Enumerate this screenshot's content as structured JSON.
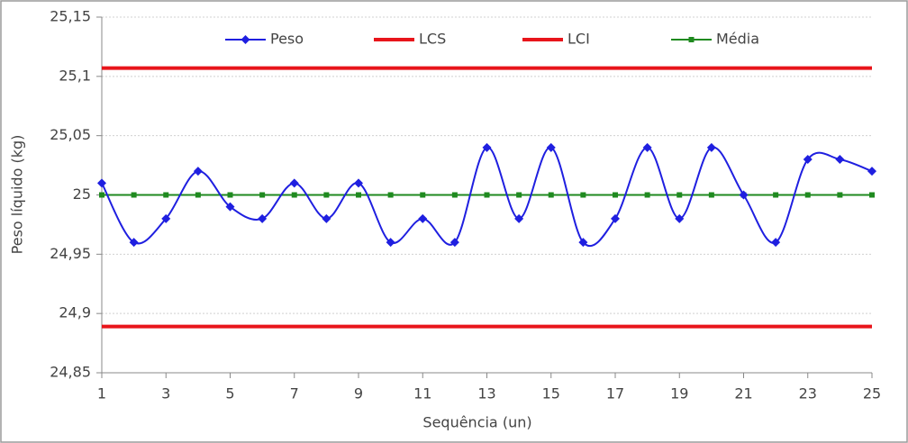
{
  "chart_data": {
    "type": "line",
    "x_label": "Sequência (un)",
    "y_label": "Peso líquido (kg)",
    "x": [
      1,
      2,
      3,
      4,
      5,
      6,
      7,
      8,
      9,
      10,
      11,
      12,
      13,
      14,
      15,
      16,
      17,
      18,
      19,
      20,
      21,
      22,
      23,
      24,
      25
    ],
    "xlim": [
      1,
      25
    ],
    "xticks": [
      1,
      3,
      5,
      7,
      9,
      11,
      13,
      15,
      17,
      19,
      21,
      23,
      25
    ],
    "ylim": [
      24.85,
      25.15
    ],
    "yticks": [
      {
        "value": 24.85,
        "label": "24,85"
      },
      {
        "value": 24.9,
        "label": "24,9"
      },
      {
        "value": 24.95,
        "label": "24,95"
      },
      25,
      {
        "value": 25.05,
        "label": "25,05"
      },
      {
        "value": 25.1,
        "label": "25,1"
      },
      {
        "value": 25.15,
        "label": "25,15"
      }
    ],
    "grid": true,
    "legend": "top",
    "series": [
      {
        "name": "Peso",
        "color": "#1f1fe0",
        "marker": "diamond",
        "smooth": true,
        "values": [
          25.01,
          24.96,
          24.98,
          25.02,
          24.99,
          24.98,
          25.01,
          24.98,
          25.01,
          24.96,
          24.98,
          24.96,
          25.04,
          24.98,
          25.04,
          24.96,
          24.98,
          25.04,
          24.98,
          25.04,
          25.0,
          24.96,
          25.03,
          25.03,
          25.02
        ]
      },
      {
        "name": "LCS",
        "color": "#e8151b",
        "values": [
          25.107,
          25.107,
          25.107,
          25.107,
          25.107,
          25.107,
          25.107,
          25.107,
          25.107,
          25.107,
          25.107,
          25.107,
          25.107,
          25.107,
          25.107,
          25.107,
          25.107,
          25.107,
          25.107,
          25.107,
          25.107,
          25.107,
          25.107,
          25.107,
          25.107
        ]
      },
      {
        "name": "LCI",
        "color": "#e8151b",
        "values": [
          24.889,
          24.889,
          24.889,
          24.889,
          24.889,
          24.889,
          24.889,
          24.889,
          24.889,
          24.889,
          24.889,
          24.889,
          24.889,
          24.889,
          24.889,
          24.889,
          24.889,
          24.889,
          24.889,
          24.889,
          24.889,
          24.889,
          24.889,
          24.889,
          24.889
        ]
      },
      {
        "name": "Média",
        "color": "#1f8a1f",
        "marker": "square",
        "values": [
          25,
          25,
          25,
          25,
          25,
          25,
          25,
          25,
          25,
          25,
          25,
          25,
          25,
          25,
          25,
          25,
          25,
          25,
          25,
          25,
          25,
          25,
          25,
          25,
          25
        ]
      }
    ]
  }
}
